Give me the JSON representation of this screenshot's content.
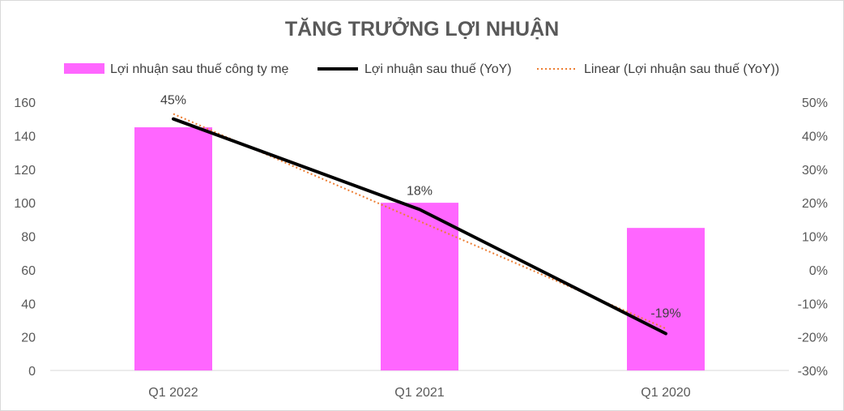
{
  "chart_data": {
    "type": "bar",
    "title": "TĂNG TRƯỞNG LỢI NHUẬN",
    "categories": [
      "Q1 2022",
      "Q1 2021",
      "Q1 2020"
    ],
    "series": [
      {
        "name": "Lợi nhuận sau thuế công ty mẹ",
        "type": "bar",
        "axis": "left",
        "values": [
          145,
          100,
          85
        ],
        "color": "#ff66ff"
      },
      {
        "name": "Lợi nhuận sau thuế (YoY)",
        "type": "line",
        "axis": "right",
        "values": [
          45,
          18,
          -19
        ],
        "data_labels": [
          "45%",
          "18%",
          "-19%"
        ],
        "color": "#000000"
      },
      {
        "name": "Linear (Lợi nhuận sau thuế (YoY))",
        "type": "trendline",
        "axis": "right",
        "values": [
          46.5,
          14.5,
          -17.5
        ],
        "color": "#ed7d31"
      }
    ],
    "left_axis": {
      "min": 0,
      "max": 160,
      "step": 20,
      "ticks": [
        "0",
        "20",
        "40",
        "60",
        "80",
        "100",
        "120",
        "140",
        "160"
      ]
    },
    "right_axis": {
      "min": -30,
      "max": 50,
      "step": 10,
      "ticks": [
        "-30%",
        "-20%",
        "-10%",
        "0%",
        "10%",
        "20%",
        "30%",
        "40%",
        "50%"
      ]
    },
    "legend_position": "top",
    "grid": false
  }
}
